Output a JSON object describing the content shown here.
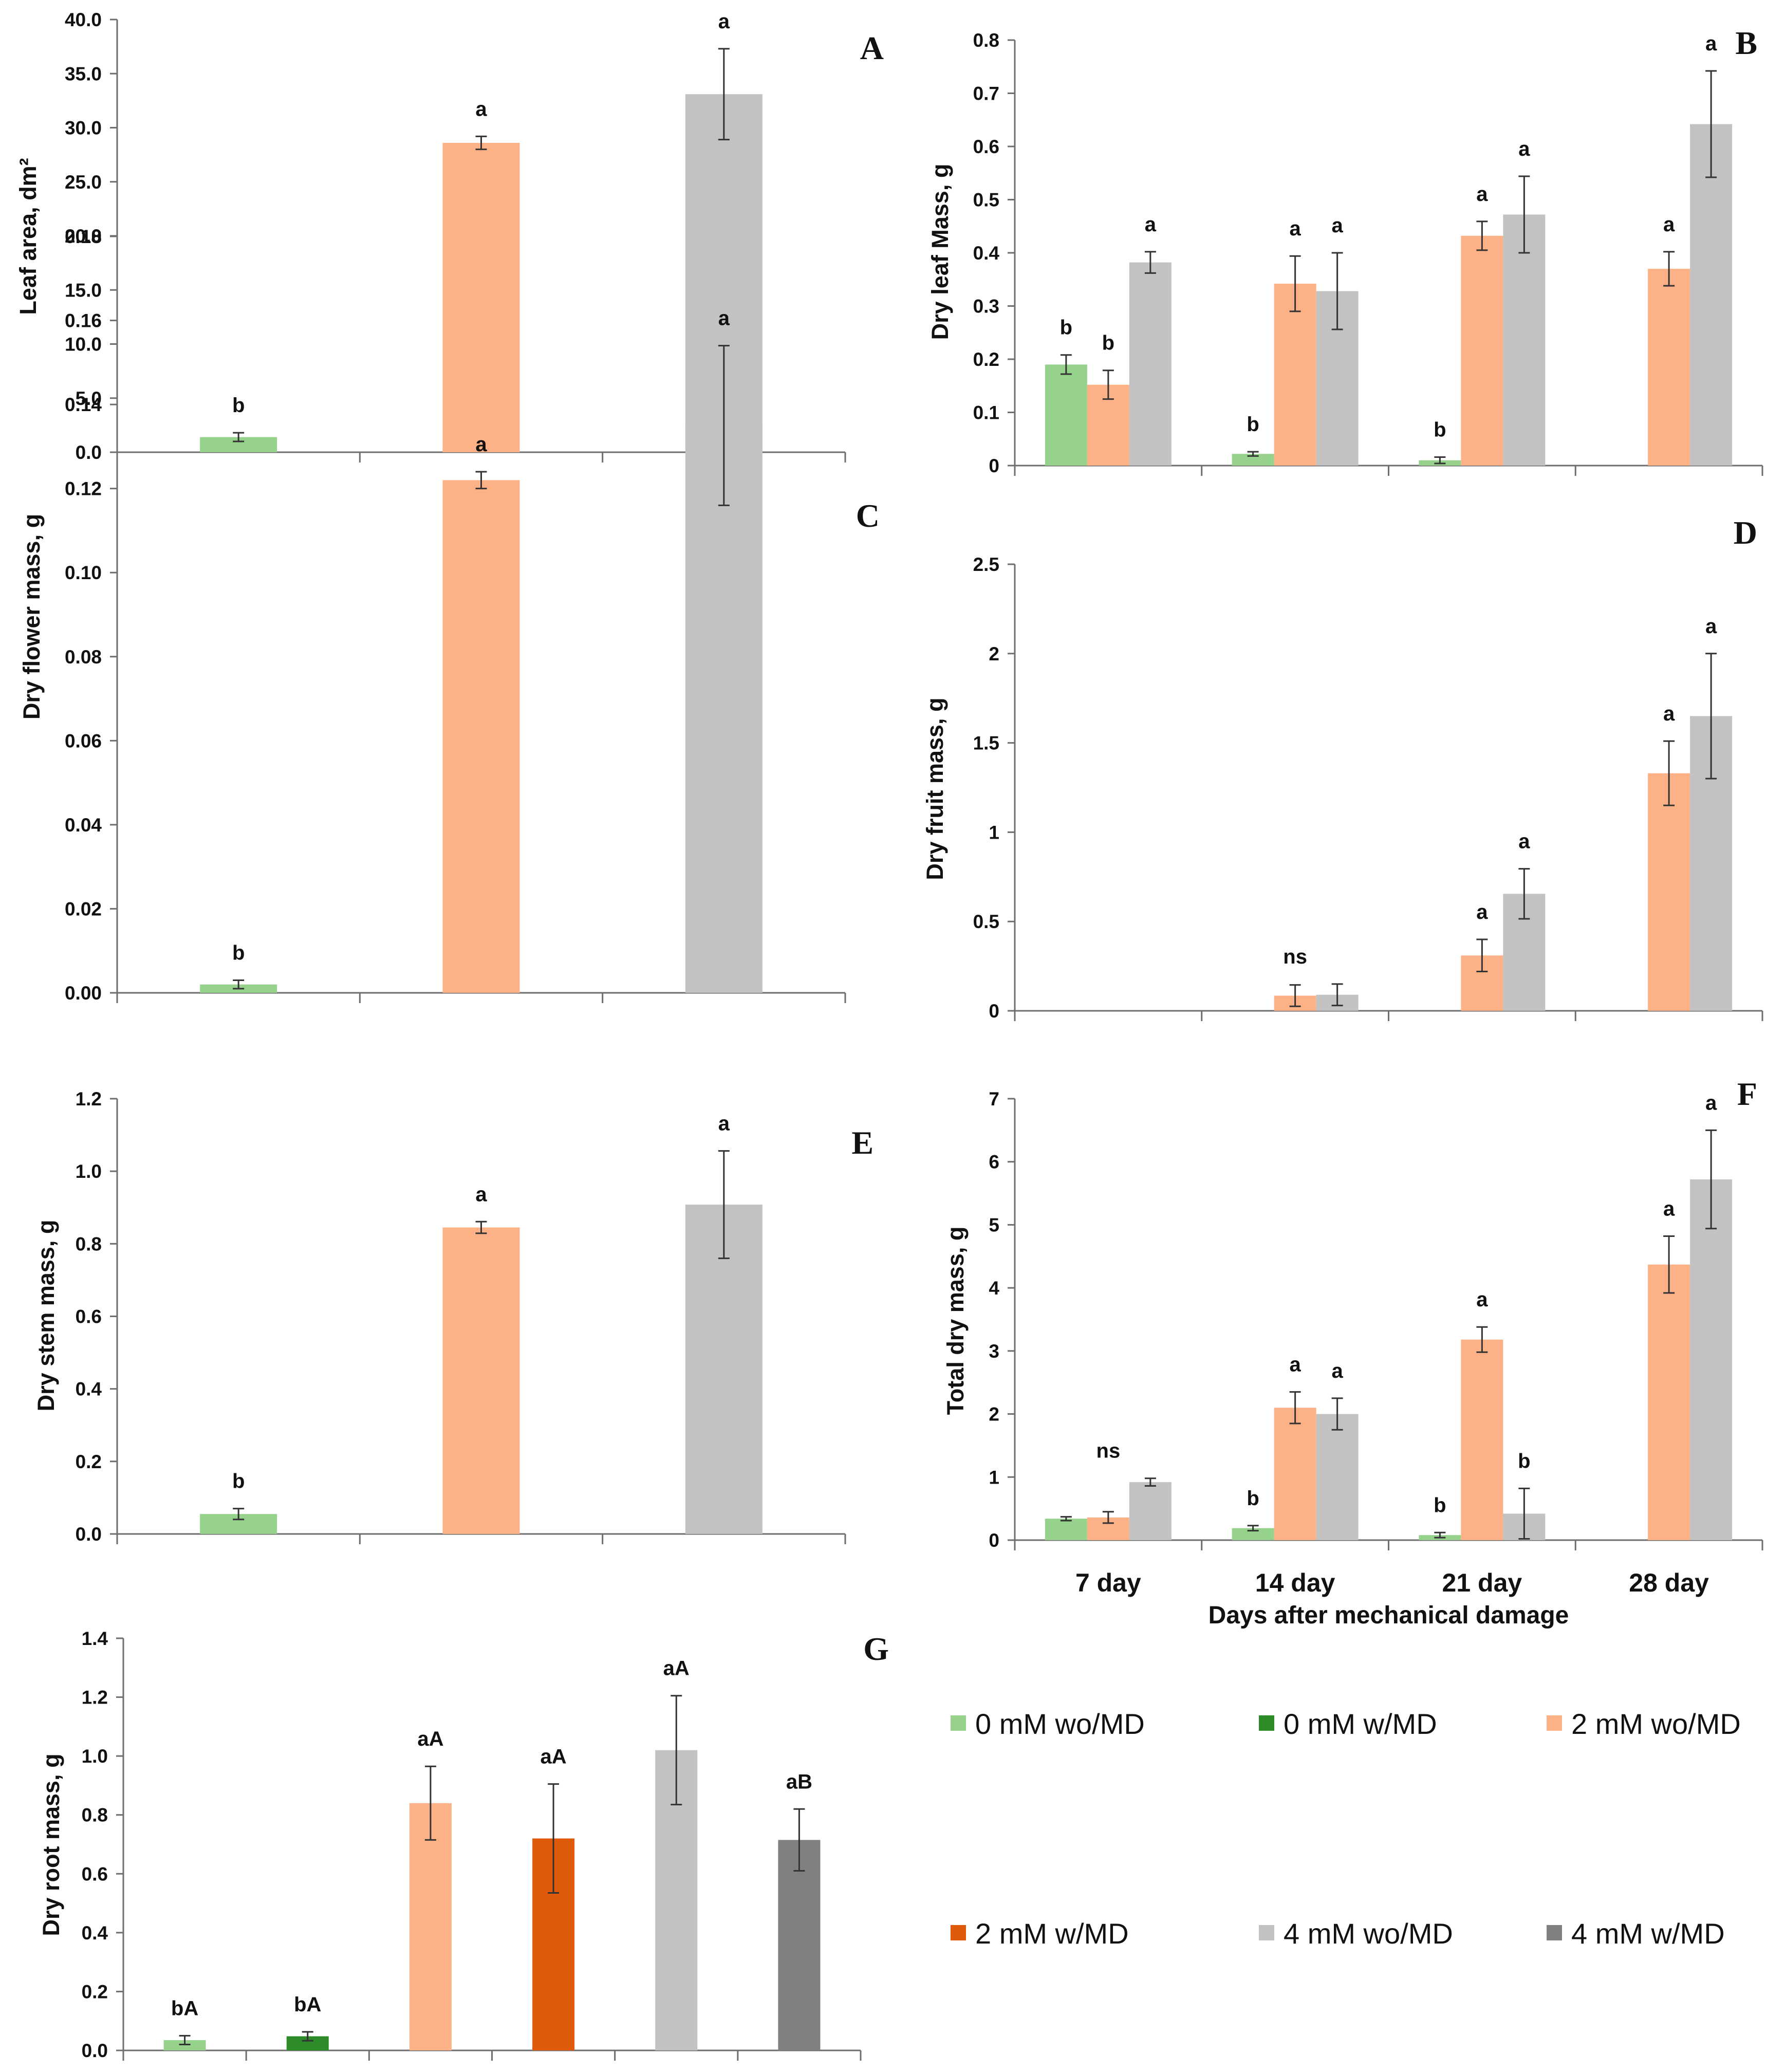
{
  "colors": {
    "0 mM wo/MD": "#96d28c",
    "0 mM w/MD": "#2e8b2a",
    "2 mM wo/MD": "#fcb286",
    "2 mM w/MD": "#e05a0b",
    "4 mM wo/MD": "#c2c2c2",
    "4 mM w/MD": "#808080"
  },
  "legend": {
    "items": [
      "0 mM wo/MD",
      "0 mM w/MD",
      "2 mM wo/MD",
      "2 mM w/MD",
      "4 mM wo/MD",
      "4 mM w/MD"
    ]
  },
  "chart_data": [
    {
      "id": "A",
      "panel_label": "A",
      "type": "bar",
      "ylabel": "Leaf area, dm²",
      "ylim": [
        0,
        40
      ],
      "ytick_labels": [
        "0.0",
        "5.0",
        "10.0",
        "15.0",
        "20.0",
        "25.0",
        "30.0",
        "35.0",
        "40.0"
      ],
      "categories": [
        "0 mM wo/MD",
        "2 mM wo/MD",
        "4 mM wo/MD"
      ],
      "values": [
        1.4,
        28.6,
        33.1
      ],
      "errors": [
        0.4,
        0.6,
        4.2
      ],
      "sig": [
        "b",
        "a",
        "a"
      ]
    },
    {
      "id": "B",
      "panel_label": "B",
      "type": "bar",
      "ylabel": "Dry leaf Mass, g",
      "ylim": [
        0,
        0.8
      ],
      "ytick_labels": [
        "0",
        "0.1",
        "0.2",
        "0.3",
        "0.4",
        "0.5",
        "0.6",
        "0.7",
        "0.8"
      ],
      "categories": [
        "7 day",
        "14 day",
        "21 day",
        "28 day"
      ],
      "series": [
        {
          "name": "0 mM wo/MD",
          "values": [
            0.19,
            0.022,
            0.01,
            null
          ],
          "errors": [
            0.018,
            0.004,
            0.006,
            null
          ],
          "sig": [
            "b",
            "b",
            "b",
            ""
          ]
        },
        {
          "name": "2 mM wo/MD",
          "values": [
            0.152,
            0.342,
            0.432,
            0.37
          ],
          "errors": [
            0.027,
            0.052,
            0.027,
            0.032
          ],
          "sig": [
            "b",
            "a",
            "a",
            "a"
          ]
        },
        {
          "name": "4 mM wo/MD",
          "values": [
            0.382,
            0.328,
            0.472,
            0.642
          ],
          "errors": [
            0.02,
            0.072,
            0.072,
            0.1
          ],
          "sig": [
            "a",
            "a",
            "a",
            "a"
          ]
        }
      ]
    },
    {
      "id": "C",
      "panel_label": "C",
      "type": "bar",
      "ylabel": "Dry flower mass, g",
      "ylim": [
        0,
        0.18
      ],
      "ytick_labels": [
        "0.00",
        "0.02",
        "0.04",
        "0.06",
        "0.08",
        "0.10",
        "0.12",
        "0.14",
        "0.16",
        "0.18"
      ],
      "categories": [
        "0 mM wo/MD",
        "2 mM wo/MD",
        "4 mM wo/MD"
      ],
      "values": [
        0.002,
        0.122,
        0.135
      ],
      "errors": [
        0.001,
        0.002,
        0.019
      ],
      "sig": [
        "b",
        "a",
        "a"
      ]
    },
    {
      "id": "D",
      "panel_label": "D",
      "type": "bar",
      "ylabel": "Dry fruit mass, g",
      "ylim": [
        0,
        2.5
      ],
      "ytick_labels": [
        "0",
        "0.5",
        "1",
        "1.5",
        "2",
        "2.5"
      ],
      "categories": [
        "7 day",
        "14 day",
        "21 day",
        "28 day"
      ],
      "series": [
        {
          "name": "0 mM wo/MD",
          "values": [
            null,
            null,
            null,
            null
          ],
          "errors": [
            null,
            null,
            null,
            null
          ],
          "sig": [
            "",
            "",
            "",
            ""
          ]
        },
        {
          "name": "2 mM wo/MD",
          "values": [
            null,
            0.085,
            0.31,
            1.33
          ],
          "errors": [
            null,
            0.06,
            0.09,
            0.18
          ],
          "sig": [
            "",
            "",
            "a",
            "a"
          ]
        },
        {
          "name": "4 mM wo/MD",
          "values": [
            null,
            0.09,
            0.655,
            1.65
          ],
          "errors": [
            null,
            0.06,
            0.14,
            0.35
          ],
          "sig": [
            "",
            "",
            "a",
            "a"
          ]
        }
      ],
      "group_sig": [
        {
          "category": "14 day",
          "label": "ns"
        }
      ]
    },
    {
      "id": "E",
      "panel_label": "E",
      "type": "bar",
      "ylabel": "Dry stem mass, g",
      "ylim": [
        0,
        1.2
      ],
      "ytick_labels": [
        "0.0",
        "0.2",
        "0.4",
        "0.6",
        "0.8",
        "1.0",
        "1.2"
      ],
      "categories": [
        "0 mM wo/MD",
        "2 mM wo/MD",
        "4 mM wo/MD"
      ],
      "values": [
        0.055,
        0.845,
        0.908
      ],
      "errors": [
        0.015,
        0.016,
        0.148
      ],
      "sig": [
        "b",
        "a",
        "a"
      ]
    },
    {
      "id": "F",
      "panel_label": "F",
      "type": "bar",
      "ylabel": "Total dry mass, g",
      "xlabel": "Days after mechanical damage",
      "ylim": [
        0,
        7
      ],
      "ytick_labels": [
        "0",
        "1",
        "2",
        "3",
        "4",
        "5",
        "6",
        "7"
      ],
      "categories": [
        "7 day",
        "14 day",
        "21 day",
        "28 day"
      ],
      "series": [
        {
          "name": "0 mM wo/MD",
          "values": [
            0.34,
            0.19,
            0.08,
            null
          ],
          "errors": [
            0.03,
            0.04,
            0.04,
            null
          ],
          "sig": [
            "",
            "b",
            "b",
            ""
          ]
        },
        {
          "name": "2 mM wo/MD",
          "values": [
            0.36,
            2.1,
            3.18,
            4.37
          ],
          "errors": [
            0.09,
            0.25,
            0.2,
            0.45
          ],
          "sig": [
            "",
            "a",
            "a",
            "a"
          ]
        },
        {
          "name": "4 mM wo/MD",
          "values": [
            0.92,
            2.0,
            0.42,
            5.72
          ],
          "errors": [
            0.06,
            0.25,
            0.4,
            0.78
          ],
          "sig": [
            "",
            "a",
            "b",
            "a"
          ]
        }
      ],
      "group_sig": [
        {
          "category": "7 day",
          "label": "ns"
        }
      ]
    },
    {
      "id": "G",
      "panel_label": "G",
      "type": "bar",
      "ylabel": "Dry root mass, g",
      "ylim": [
        0,
        1.4
      ],
      "ytick_labels": [
        "0.0",
        "0.2",
        "0.4",
        "0.6",
        "0.8",
        "1.0",
        "1.2",
        "1.4"
      ],
      "categories": [
        "0 mM wo/MD",
        "0 mM w/MD",
        "2 mM wo/MD",
        "2 mM w/MD",
        "4 mM wo/MD",
        "4 mM w/MD"
      ],
      "values": [
        0.035,
        0.048,
        0.84,
        0.72,
        1.02,
        0.715
      ],
      "errors": [
        0.015,
        0.015,
        0.125,
        0.185,
        0.185,
        0.105
      ],
      "sig": [
        "bA",
        "bA",
        "aA",
        "aA",
        "aA",
        "aB"
      ]
    }
  ]
}
